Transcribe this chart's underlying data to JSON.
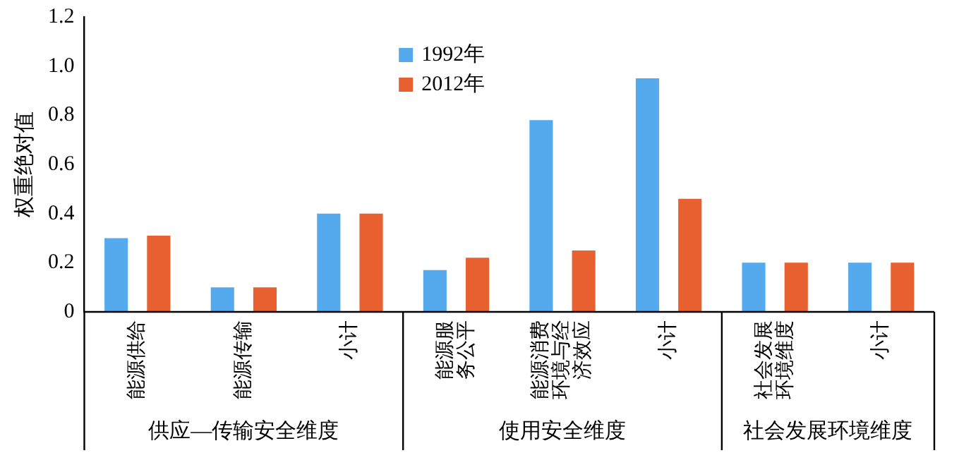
{
  "chart_data": {
    "type": "bar",
    "ylabel": "权重绝对值",
    "categories": [
      "能源供给",
      "能源传输",
      "小计",
      "能源服务公平",
      "能源消费环境与经济效应",
      "小计",
      "社会发展环境维度",
      "小计"
    ],
    "series": [
      {
        "name": "1992年",
        "color": "#55aaee",
        "values": [
          0.3,
          0.1,
          0.4,
          0.17,
          0.78,
          0.95,
          0.2,
          0.2
        ]
      },
      {
        "name": "2012年",
        "color": "#e8602f",
        "values": [
          0.31,
          0.1,
          0.4,
          0.22,
          0.25,
          0.46,
          0.2,
          0.2
        ]
      }
    ],
    "ylim": [
      0,
      1.2
    ],
    "yticks": [
      0,
      0.2,
      0.4,
      0.6,
      0.8,
      {
        "value": 1,
        "label": "1.0"
      },
      1.2
    ],
    "annotations": [
      "供应—传输安全维度",
      "使用安全维度",
      "社会发展环境维度"
    ],
    "grid": false,
    "legend": "top"
  }
}
